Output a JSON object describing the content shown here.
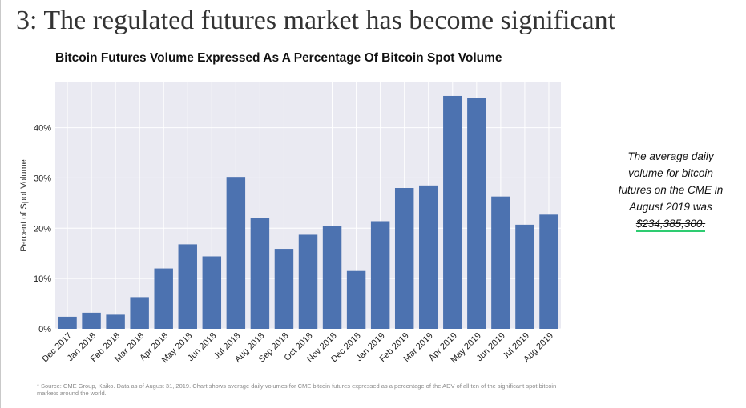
{
  "slide": {
    "title": "3: The regulated futures market has become significant"
  },
  "callout": {
    "text": "The average daily volume for bitcoin futures on the CME in August 2019 was",
    "amount": "$234,385,300."
  },
  "footnote": "* Source: CME Group, Kaiko. Data as of August 31, 2019. Chart shows average daily volumes for CME bitcoin futures expressed as a percentage of the ADV of all ten of the significant spot bitcoin markets around the world.",
  "colors": {
    "bar": "#4c72b0",
    "plot_background": "#eaeaf2",
    "grid": "#ffffff",
    "accent_underline": "#2ecc71"
  },
  "chart_data": {
    "type": "bar",
    "title": "Bitcoin Futures Volume Expressed As A Percentage Of Bitcoin Spot Volume",
    "xlabel": "",
    "ylabel": "Percent of Spot Volume",
    "categories": [
      "Dec 2017",
      "Jan 2018",
      "Feb 2018",
      "Mar 2018",
      "Apr 2018",
      "May 2018",
      "Jun 2018",
      "Jul 2018",
      "Aug 2018",
      "Sep 2018",
      "Oct 2018",
      "Nov 2018",
      "Dec 2018",
      "Jan 2019",
      "Feb 2019",
      "Mar 2019",
      "Apr 2019",
      "May 2019",
      "Jun 2019",
      "Jul 2019",
      "Aug 2019"
    ],
    "values": [
      2.4,
      3.2,
      2.8,
      6.3,
      12.0,
      16.8,
      14.4,
      30.2,
      22.1,
      15.9,
      18.7,
      20.5,
      11.5,
      21.4,
      28.0,
      28.5,
      46.3,
      45.9,
      26.3,
      20.7,
      22.7
    ],
    "yticks": [
      0,
      10,
      20,
      30,
      40
    ],
    "ytick_labels": [
      "0%",
      "10%",
      "20%",
      "30%",
      "40%"
    ],
    "ylim": [
      0,
      49
    ],
    "grid": true,
    "legend": "none"
  }
}
